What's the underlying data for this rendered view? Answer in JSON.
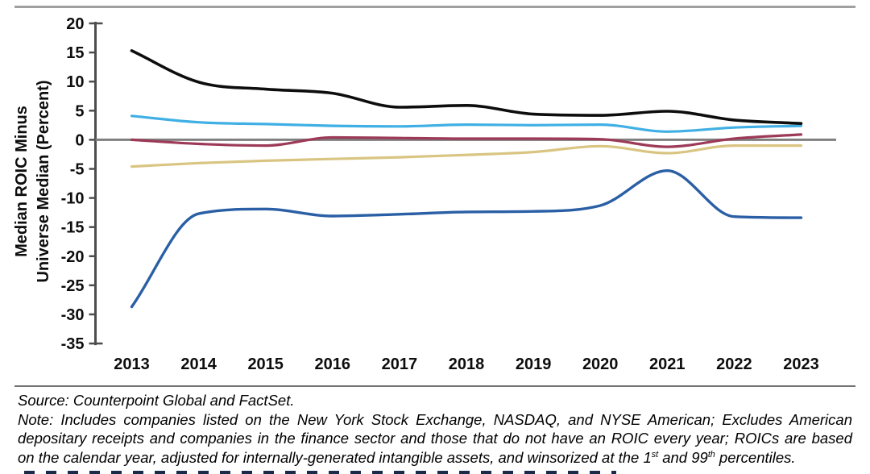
{
  "chart_data": {
    "type": "line",
    "title": "",
    "ylabel_line1": "Median ROIC Minus",
    "ylabel_line2": "Universe Median (Percent)",
    "xlabel": "",
    "ylim": [
      -35,
      20
    ],
    "y_ticks": [
      20,
      15,
      10,
      5,
      0,
      -5,
      -10,
      -15,
      -20,
      -25,
      -30,
      -35
    ],
    "x": [
      2013,
      2014,
      2015,
      2016,
      2017,
      2018,
      2019,
      2020,
      2021,
      2022,
      2023
    ],
    "x_tick_labels": [
      "2013",
      "2014",
      "2015",
      "2016",
      "2017",
      "2018",
      "2019",
      "2020",
      "2021",
      "2022",
      "2023"
    ],
    "grid": false,
    "legend_position": "none",
    "zero_line": true,
    "axis_color": "#4d4d4d",
    "zero_line_color": "#7f7f7f",
    "series": [
      {
        "name": "tan-line",
        "color": "#d9c581",
        "width": 3.2,
        "values": [
          -4.6,
          -4.0,
          -3.6,
          -3.3,
          -3.0,
          -2.6,
          -2.1,
          -1.1,
          -2.3,
          -1.0,
          -1.0
        ]
      },
      {
        "name": "crimson-line",
        "color": "#9c3a58",
        "width": 3.2,
        "values": [
          0.0,
          -0.7,
          -1.0,
          0.4,
          0.3,
          0.2,
          0.2,
          0.1,
          -1.2,
          0.2,
          0.9
        ]
      },
      {
        "name": "light-blue-line",
        "color": "#3fafe4",
        "width": 3.2,
        "values": [
          4.1,
          3.0,
          2.7,
          2.4,
          2.3,
          2.6,
          2.5,
          2.6,
          1.4,
          2.1,
          2.4
        ]
      },
      {
        "name": "dark-blue-line",
        "color": "#2a5fa5",
        "width": 3.4,
        "values": [
          -28.7,
          -12.7,
          -11.9,
          -13.1,
          -12.8,
          -12.4,
          -12.3,
          -11.3,
          -5.3,
          -13.2,
          -13.4
        ]
      },
      {
        "name": "black-line",
        "color": "#0d0d0d",
        "width": 3.6,
        "values": [
          15.3,
          9.9,
          8.7,
          8.0,
          5.6,
          5.9,
          4.4,
          4.2,
          4.9,
          3.4,
          2.8
        ]
      }
    ]
  },
  "footer": {
    "source": "Source: Counterpoint Global and FactSet.",
    "note_line1": "Note: Includes companies listed on the New York Stock Exchange, NASDAQ, and NYSE American; Excludes American",
    "note_line2": "depositary receipts and companies in the finance sector and those that do not have an ROIC every year; ROICs are based",
    "note_line3_parts": [
      "on the calendar year, adjusted for internally-generated intangible assets, and winsorized at the 1",
      "st",
      " and 99",
      "th",
      " percentiles."
    ]
  }
}
